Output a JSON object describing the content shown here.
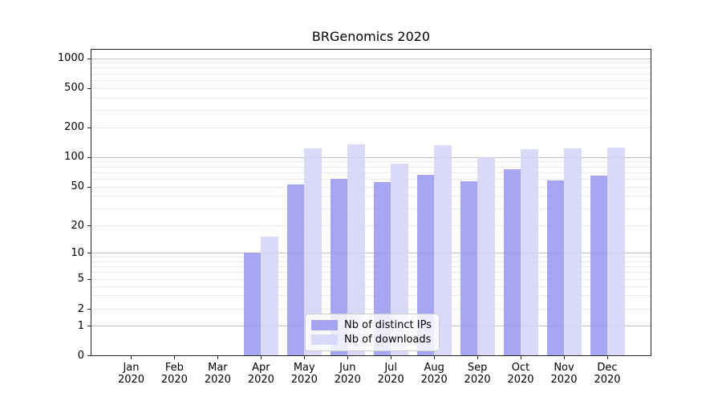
{
  "chart_data": {
    "type": "bar",
    "title": "BRGenomics 2020",
    "categories": [
      "Jan 2020",
      "Feb 2020",
      "Mar 2020",
      "Apr 2020",
      "May 2020",
      "Jun 2020",
      "Jul 2020",
      "Aug 2020",
      "Sep 2020",
      "Oct 2020",
      "Nov 2020",
      "Dec 2020"
    ],
    "series": [
      {
        "name": "Nb of distinct IPs",
        "color": "#9696f0",
        "alpha": 0.85,
        "values": [
          0,
          0,
          0,
          10,
          52,
          60,
          56,
          66,
          57,
          75,
          58,
          64
        ]
      },
      {
        "name": "Nb of downloads",
        "color": "#d4d4f7",
        "alpha": 0.85,
        "values": [
          0,
          0,
          0,
          15,
          122,
          135,
          86,
          132,
          100,
          120,
          123,
          125
        ]
      }
    ],
    "xlabel": "",
    "ylabel": "",
    "yaxis": {
      "scale": "symlog",
      "ticks": [
        0,
        1,
        2,
        5,
        10,
        20,
        50,
        100,
        200,
        500,
        1000
      ],
      "ylim": [
        0,
        1250
      ]
    },
    "grid": true,
    "legend_position": "inside-lower-center"
  },
  "colors": {
    "bar_distinct_ips": "#9696f0",
    "bar_downloads": "#d4d4f7",
    "grid_major": "#c2c2c2",
    "grid_minor": "#ebebeb",
    "spine": "#262626",
    "background": "#ffffff"
  }
}
